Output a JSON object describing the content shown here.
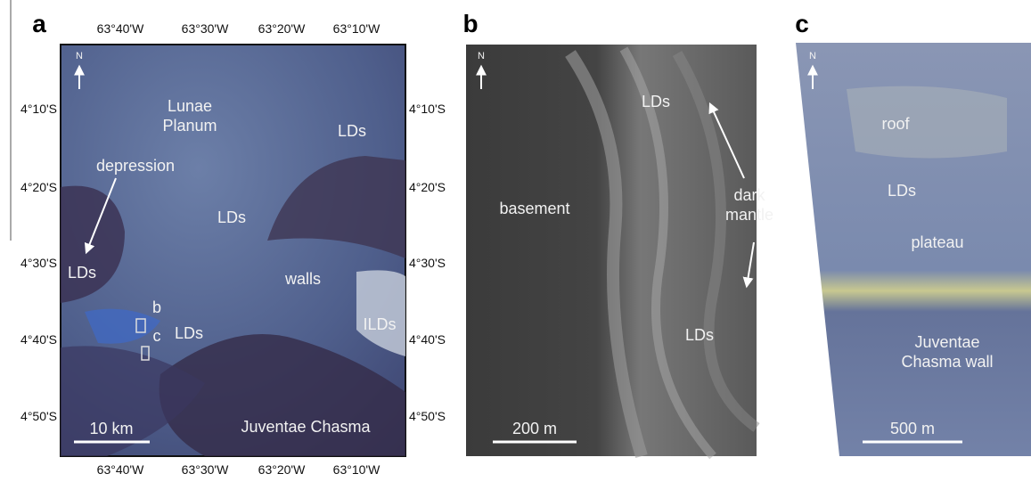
{
  "panels": [
    {
      "label": "a",
      "top_ticks": [
        "63°40'W",
        "63°30'W",
        "63°20'W",
        "63°10'W"
      ],
      "bottom_ticks": [
        "63°40'W",
        "63°30'W",
        "63°20'W",
        "63°10'W"
      ],
      "left_ticks": [
        "4°10'S",
        "4°20'S",
        "4°30'S",
        "4°40'S",
        "4°50'S"
      ],
      "right_ticks": [
        "4°10'S",
        "4°20'S",
        "4°30'S",
        "4°40'S",
        "4°50'S"
      ],
      "north": "N",
      "annotations": [
        {
          "lines": [
            "Lunae",
            "Planum"
          ]
        },
        {
          "lines": [
            "LDs"
          ]
        },
        {
          "lines": [
            "depression"
          ]
        },
        {
          "lines": [
            "LDs"
          ]
        },
        {
          "lines": [
            "LDs"
          ]
        },
        {
          "lines": [
            "walls"
          ]
        },
        {
          "lines": [
            "ILDs"
          ]
        },
        {
          "lines": [
            "b"
          ]
        },
        {
          "lines": [
            "c"
          ]
        },
        {
          "lines": [
            "LDs"
          ]
        },
        {
          "lines": [
            "Juventae Chasma"
          ]
        }
      ],
      "scale_bar": "10 km"
    },
    {
      "label": "b",
      "north": "N",
      "annotations": [
        {
          "lines": [
            "LDs"
          ]
        },
        {
          "lines": [
            "basement"
          ]
        },
        {
          "lines": [
            "dark",
            "mantle"
          ]
        },
        {
          "lines": [
            "LDs"
          ]
        }
      ],
      "scale_bar": "200 m"
    },
    {
      "label": "c",
      "north": "N",
      "annotations": [
        {
          "lines": [
            "roof"
          ]
        },
        {
          "lines": [
            "LDs"
          ]
        },
        {
          "lines": [
            "plateau"
          ]
        },
        {
          "lines": [
            "Juventae",
            "Chasma wall"
          ]
        }
      ],
      "scale_bar": "500 m"
    }
  ]
}
